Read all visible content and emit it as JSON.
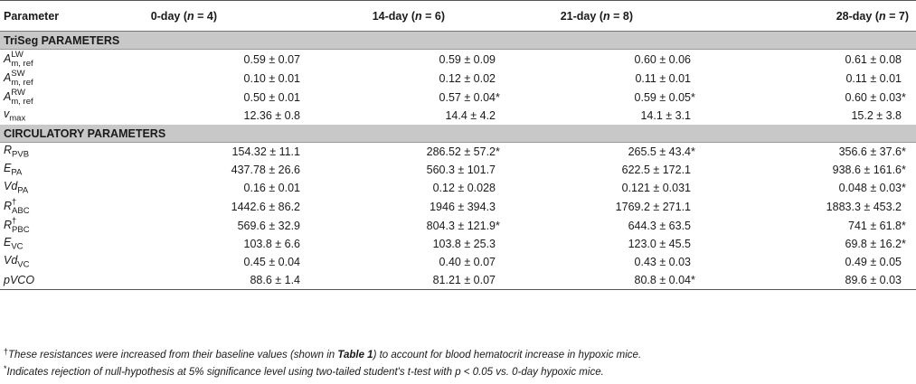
{
  "header": {
    "param": "Parameter",
    "cols": [
      {
        "label": "0-day (",
        "n": "n",
        "rest": " = 4)"
      },
      {
        "label": "14-day (",
        "n": "n",
        "rest": " = 6)"
      },
      {
        "label": "21-day (",
        "n": "n",
        "rest": " = 8)"
      },
      {
        "label": "28-day (",
        "n": "n",
        "rest": " = 7)"
      }
    ]
  },
  "sections": {
    "triseg": "TriSeg PARAMETERS",
    "circ": "CIRCULATORY PARAMETERS"
  },
  "triseg_rows": [
    {
      "sym": "A",
      "sup": "LW",
      "sub": "m, ref",
      "vals": [
        "0.59 ± 0.07",
        "0.59 ± 0.09",
        "0.60 ± 0.06",
        "0.61 ± 0.08"
      ],
      "stars": [
        "",
        "",
        "",
        ""
      ]
    },
    {
      "sym": "A",
      "sup": "SW",
      "sub": "m, ref",
      "vals": [
        "0.10 ± 0.01",
        "0.12 ± 0.02",
        "0.11 ± 0.01",
        "0.11 ± 0.01"
      ],
      "stars": [
        "",
        "",
        "",
        ""
      ]
    },
    {
      "sym": "A",
      "sup": "RW",
      "sub": "m, ref",
      "vals": [
        "0.50 ± 0.01",
        "0.57 ± 0.04",
        "0.59 ± 0.05",
        "0.60 ± 0.03"
      ],
      "stars": [
        "",
        "*",
        "*",
        "*"
      ]
    },
    {
      "sym": "v",
      "sub": "max",
      "vals": [
        "12.36 ± 0.8",
        "14.4 ± 4.2",
        "14.1 ± 3.1",
        "15.2 ± 3.8"
      ],
      "stars": [
        "",
        "",
        "",
        ""
      ]
    }
  ],
  "circ_rows": [
    {
      "sym": "R",
      "sub": "PVB",
      "vals": [
        "154.32 ± 11.1",
        "286.52 ± 57.2",
        "265.5 ± 43.4",
        "356.6 ± 37.6"
      ],
      "stars": [
        "",
        "*",
        "*",
        "*"
      ]
    },
    {
      "sym": "E",
      "sub": "PA",
      "vals": [
        "437.78 ± 26.6",
        "560.3 ± 101.7",
        "622.5 ± 172.1",
        "938.6 ± 161.6"
      ],
      "stars": [
        "",
        "",
        "",
        "*"
      ]
    },
    {
      "sym": "Vd",
      "sub": "PA",
      "vals": [
        "0.16 ± 0.01",
        "0.12 ± 0.028",
        "0.121 ± 0.031",
        "0.048 ± 0.03"
      ],
      "stars": [
        "",
        "",
        "",
        "*"
      ]
    },
    {
      "sym": "R",
      "sup": "†",
      "sub": "ABC",
      "vals": [
        "1442.6 ± 86.2",
        "1946 ± 394.3",
        "1769.2 ± 271.1",
        "1883.3 ± 453.2"
      ],
      "stars": [
        "",
        "",
        "",
        ""
      ]
    },
    {
      "sym": "R",
      "sup": "†",
      "sub": "PBC",
      "vals": [
        "569.6 ± 32.9",
        "804.3 ± 121.9",
        "644.3 ± 63.5",
        "741 ± 61.8"
      ],
      "stars": [
        "",
        "*",
        "",
        "*"
      ]
    },
    {
      "sym": "E",
      "sub": "VC",
      "vals": [
        "103.8 ± 6.6",
        "103.8 ± 25.3",
        "123.0 ± 45.5",
        "69.8 ± 16.2"
      ],
      "stars": [
        "",
        "",
        "",
        "*"
      ]
    },
    {
      "sym": "Vd",
      "sub": "VC",
      "vals": [
        "0.45 ± 0.04",
        "0.40 ± 0.07",
        "0.43 ± 0.03",
        "0.49 ± 0.05"
      ],
      "stars": [
        "",
        "",
        "",
        ""
      ]
    },
    {
      "sym": "pVCO",
      "vals": [
        "88.6 ± 1.4",
        "81.21 ± 0.07",
        "80.8 ± 0.04",
        "89.6 ± 0.03"
      ],
      "stars": [
        "",
        "",
        "*",
        ""
      ]
    }
  ],
  "notes": {
    "dagger_mark": "†",
    "dagger_text_a": "These resistances were increased from their baseline values (shown in ",
    "dagger_bold": "Table 1",
    "dagger_text_b": ") to account for blood hematocrit increase in hypoxic mice.",
    "star_mark": "*",
    "star_text": "Indicates rejection of null-hypothesis at 5% significance level using two-tailed student's t-test with p < 0.05 vs. 0-day hypoxic mice."
  }
}
